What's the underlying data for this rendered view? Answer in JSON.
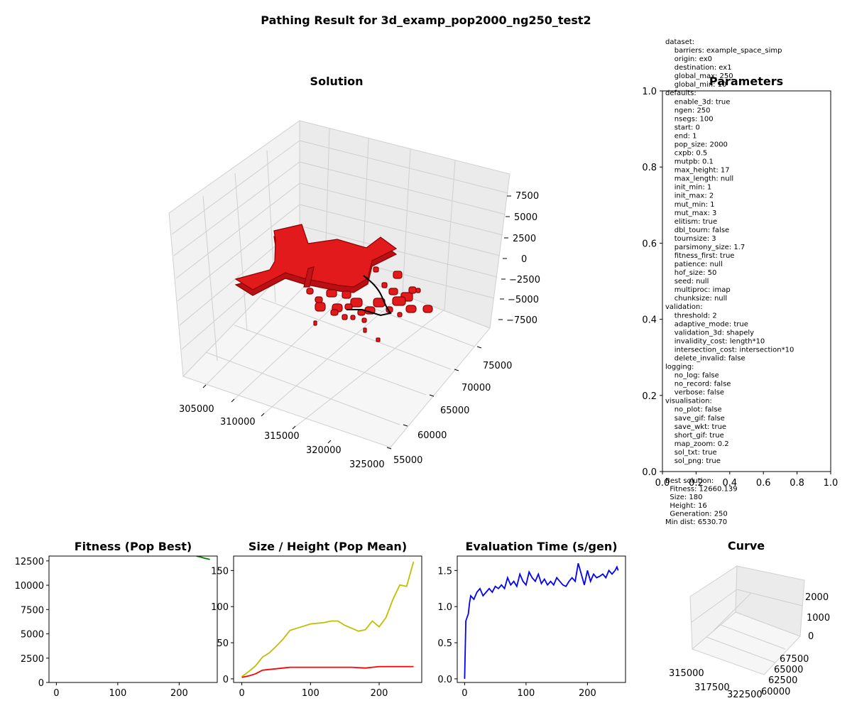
{
  "figure_title": "Pathing Result for 3d_examp_pop2000_ng250_test2",
  "colors": {
    "obstacle_fill": "#e31a1c",
    "obstacle_edge": "#8b0000",
    "path": "#000000",
    "fitness_line": "#008000",
    "size_line": "#bfbf00",
    "height_line": "#ff0000",
    "evaltime_line": "#0000ff"
  },
  "parameters_text": [
    "dataset:",
    "    barriers: example_space_simp",
    "    origin: ex0",
    "    destination: ex1",
    "    global_max: 250",
    "    global_min: 10",
    "defaults:",
    "    enable_3d: true",
    "    ngen: 250",
    "    nsegs: 100",
    "    start: 0",
    "    end: 1",
    "    pop_size: 2000",
    "    cxpb: 0.5",
    "    mutpb: 0.1",
    "    max_height: 17",
    "    max_length: null",
    "    init_min: 1",
    "    init_max: 2",
    "    mut_min: 1",
    "    mut_max: 3",
    "    elitism: true",
    "    dbl_tourn: false",
    "    tournsize: 3",
    "    parsimony_size: 1.7",
    "    fitness_first: true",
    "    patience: null",
    "    hof_size: 50",
    "    seed: null",
    "    multiproc: imap",
    "    chunksize: null",
    "validation:",
    "    threshold: 2",
    "    adaptive_mode: true",
    "    validation_3d: shapely",
    "    invalidity_cost: length*10",
    "    intersection_cost: intersection*10",
    "    delete_invalid: false",
    "logging:",
    "    no_log: false",
    "    no_record: false",
    "    verbose: false",
    "visualisation:",
    "    no_plot: false",
    "    save_gif: false",
    "    save_wkt: true",
    "    short_gif: true",
    "    map_zoom: 0.2",
    "    sol_txt: true",
    "    sol_png: true"
  ],
  "best_solution_text": [
    "Best solution:",
    "  Fitness: 12660.139",
    "  Size: 180",
    "  Height: 16",
    "  Generation: 250",
    "Min dist: 6530.70"
  ],
  "chart_data": [
    {
      "type": "scatter",
      "title": "Solution",
      "projection": "3d",
      "x_ticks": [
        "305000",
        "310000",
        "315000",
        "320000",
        "325000"
      ],
      "y_ticks": [
        "55000",
        "60000",
        "65000",
        "70000",
        "75000"
      ],
      "z_ticks": [
        "7500",
        "5000",
        "2500",
        "0",
        "−2500",
        "−5000",
        "−7500"
      ],
      "grid": true
    },
    {
      "type": "table",
      "title": "Parameters",
      "x_ticks": [
        "0.0",
        "0.2",
        "0.4",
        "0.6",
        "0.8",
        "1.0"
      ],
      "y_ticks": [
        "0.0",
        "0.2",
        "0.4",
        "0.6",
        "0.8",
        "1.0"
      ],
      "xlim": [
        0,
        1
      ],
      "ylim": [
        0,
        1
      ]
    },
    {
      "type": "line",
      "title": "Fitness (Pop Best)",
      "xlim": [
        -12,
        262
      ],
      "ylim": [
        0,
        13000
      ],
      "x_ticks": [
        0,
        100,
        200
      ],
      "y_ticks": [
        0,
        2500,
        5000,
        7500,
        10000,
        12500
      ],
      "series": [
        {
          "color": "#008000",
          "x": [
            228,
            235,
            240,
            245,
            250
          ],
          "y": [
            13000,
            12900,
            12800,
            12720,
            12660
          ]
        }
      ]
    },
    {
      "type": "line",
      "title": "Size / Height (Pop Mean)",
      "xlim": [
        -12,
        262
      ],
      "ylim": [
        -5,
        170
      ],
      "x_ticks": [
        0,
        100,
        200
      ],
      "y_ticks": [
        0,
        50,
        100,
        150
      ],
      "series": [
        {
          "color": "#bfbf00",
          "x": [
            0,
            10,
            20,
            30,
            40,
            50,
            60,
            70,
            80,
            90,
            100,
            110,
            120,
            130,
            140,
            150,
            160,
            170,
            180,
            190,
            200,
            210,
            220,
            230,
            240,
            250
          ],
          "y": [
            3,
            10,
            18,
            30,
            36,
            45,
            55,
            67,
            70,
            73,
            76,
            77,
            78,
            80,
            80,
            74,
            70,
            66,
            68,
            80,
            72,
            85,
            110,
            130,
            128,
            162
          ]
        },
        {
          "color": "#ff0000",
          "x": [
            0,
            10,
            20,
            30,
            40,
            50,
            60,
            70,
            80,
            90,
            100,
            120,
            140,
            160,
            180,
            190,
            200,
            220,
            240,
            250
          ],
          "y": [
            2,
            4,
            7,
            12,
            13,
            14,
            15,
            16,
            16,
            16,
            16,
            16,
            16,
            16,
            15,
            16,
            17,
            17,
            17,
            17
          ]
        }
      ]
    },
    {
      "type": "line",
      "title": "Evaluation Time (s/gen)",
      "xlim": [
        -12,
        262
      ],
      "ylim": [
        -0.05,
        1.7
      ],
      "x_ticks": [
        0,
        100,
        200
      ],
      "y_ticks": [
        0.0,
        0.5,
        1.0,
        1.5
      ],
      "series": [
        {
          "color": "#0000ff",
          "x": [
            0,
            2,
            4,
            6,
            8,
            10,
            15,
            20,
            25,
            30,
            35,
            40,
            45,
            50,
            55,
            60,
            65,
            70,
            75,
            80,
            85,
            90,
            95,
            100,
            105,
            110,
            115,
            120,
            125,
            130,
            135,
            140,
            145,
            150,
            155,
            160,
            165,
            170,
            175,
            180,
            185,
            190,
            195,
            200,
            205,
            210,
            215,
            220,
            225,
            230,
            235,
            240,
            245,
            248,
            250
          ],
          "y": [
            0.0,
            0.8,
            0.85,
            0.9,
            1.05,
            1.15,
            1.1,
            1.2,
            1.25,
            1.15,
            1.2,
            1.25,
            1.2,
            1.28,
            1.25,
            1.3,
            1.25,
            1.4,
            1.3,
            1.35,
            1.28,
            1.45,
            1.35,
            1.3,
            1.48,
            1.4,
            1.35,
            1.45,
            1.32,
            1.38,
            1.3,
            1.35,
            1.3,
            1.4,
            1.35,
            1.3,
            1.28,
            1.35,
            1.4,
            1.35,
            1.6,
            1.45,
            1.3,
            1.5,
            1.35,
            1.45,
            1.4,
            1.42,
            1.45,
            1.4,
            1.5,
            1.45,
            1.5,
            1.55,
            1.5
          ]
        }
      ]
    },
    {
      "type": "scatter",
      "title": "Curve",
      "projection": "3d",
      "x_ticks": [
        "315000",
        "317500",
        "320000",
        "322500"
      ],
      "y_ticks": [
        "60000",
        "62500",
        "65000",
        "67500"
      ],
      "z_ticks": [
        "0",
        "1000",
        "2000"
      ]
    }
  ]
}
